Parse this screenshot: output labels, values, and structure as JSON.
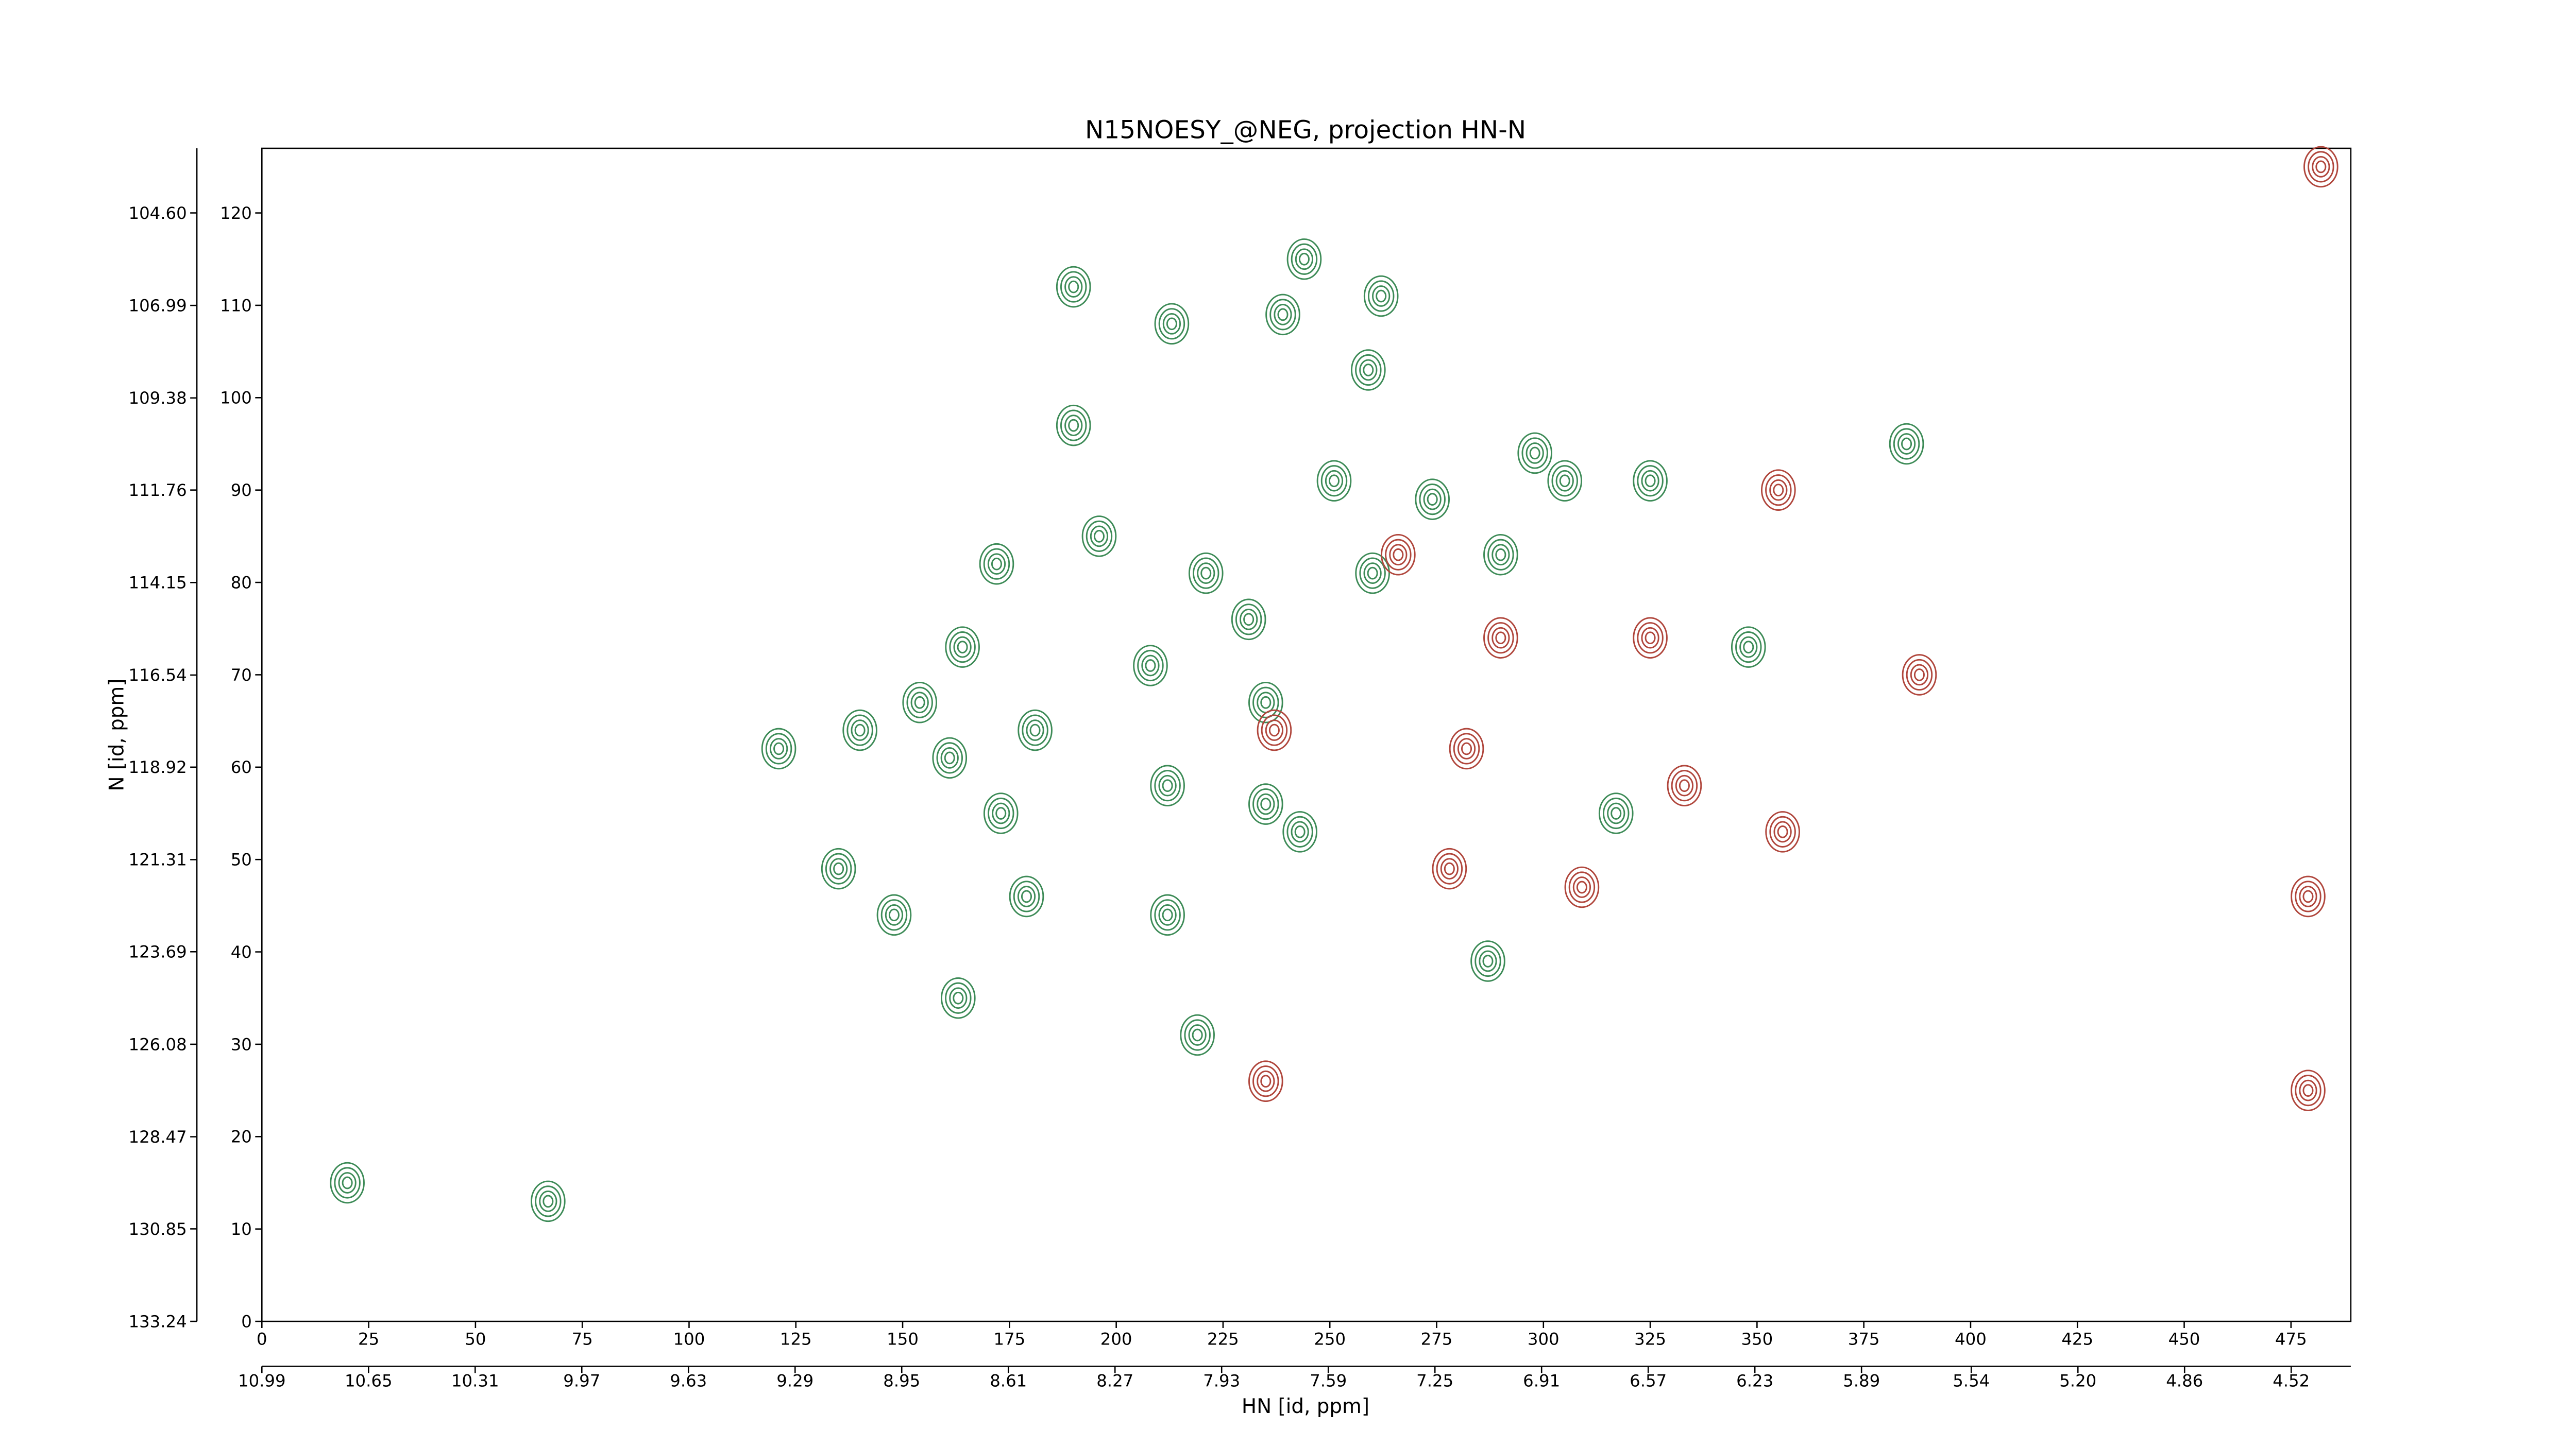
{
  "chart_data": {
    "type": "contour",
    "title": "N15NOESY_@NEG, projection HN-N",
    "x_label": "HN [id, ppm]",
    "y_label": "N [id, ppm]",
    "xlim": [
      0,
      489
    ],
    "xticks": [
      0,
      25,
      50,
      75,
      100,
      125,
      150,
      175,
      200,
      225,
      250,
      275,
      300,
      325,
      350,
      375,
      400,
      425,
      450,
      475
    ],
    "x2lim": [
      10.99,
      4.33
    ],
    "x2ticks": [
      10.99,
      10.65,
      10.31,
      9.97,
      9.63,
      9.29,
      8.95,
      8.61,
      8.27,
      7.93,
      7.59,
      7.25,
      6.91,
      6.57,
      6.23,
      5.89,
      5.54,
      {
        "value": 5.2,
        "label": "5.20"
      },
      4.86,
      4.52
    ],
    "ylim": [
      0,
      127
    ],
    "yticks": [
      0,
      10,
      20,
      30,
      40,
      50,
      60,
      70,
      80,
      90,
      100,
      110,
      120
    ],
    "y2lim": [
      133.24,
      102.93
    ],
    "y2ticks": [
      133.24,
      130.85,
      128.47,
      126.08,
      123.69,
      121.31,
      118.92,
      116.54,
      114.15,
      111.76,
      109.38,
      106.99,
      {
        "value": 104.6,
        "label": "104.60"
      }
    ],
    "series": [
      {
        "color": "#3d8b57",
        "x": [
          20,
          67,
          190,
          213,
          244,
          239,
          262,
          259,
          190,
          172,
          164,
          121,
          140,
          154,
          161,
          135,
          148,
          163,
          179,
          385,
          325,
          219,
          196,
          221,
          231,
          208,
          181,
          173,
          212,
          235,
          251,
          274,
          298,
          305,
          290,
          260,
          212,
          243,
          235,
          317,
          287,
          348
        ],
        "values": [
          15,
          13,
          112,
          108,
          115,
          109,
          111,
          103,
          97,
          82,
          73,
          62,
          64,
          67,
          61,
          49,
          44,
          35,
          46,
          95,
          91,
          31,
          85,
          81,
          76,
          71,
          64,
          55,
          58,
          67,
          91,
          89,
          94,
          91,
          83,
          81,
          44,
          53,
          56,
          55,
          39,
          73
        ]
      },
      {
        "color": "#b0463c",
        "x": [
          355,
          266,
          388,
          356,
          479,
          237,
          282,
          325,
          290,
          278,
          309,
          235,
          479,
          482,
          333
        ],
        "values": [
          90,
          83,
          70,
          53,
          25,
          64,
          62,
          74,
          74,
          49,
          47,
          26,
          46,
          125,
          58
        ]
      }
    ]
  }
}
